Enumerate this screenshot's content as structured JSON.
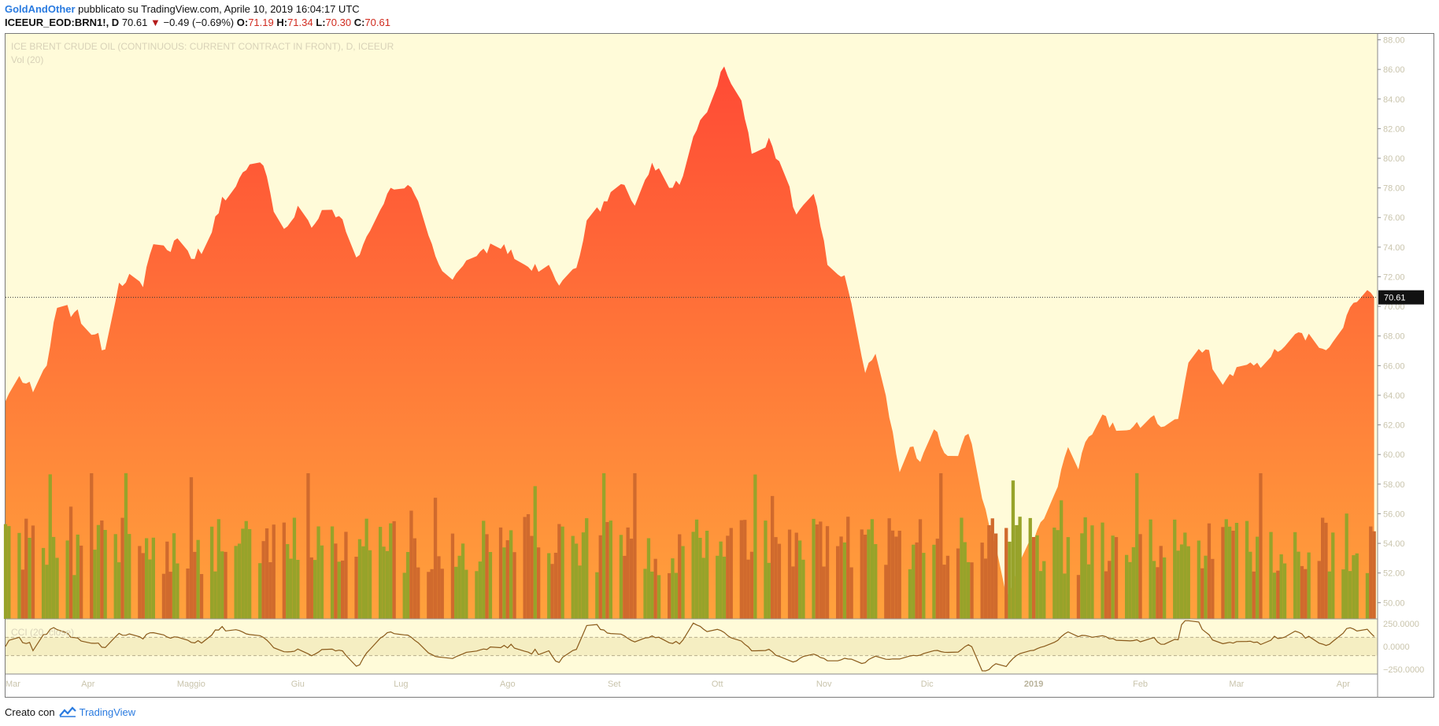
{
  "header": {
    "author": "GoldAndOther",
    "published_text": "pubblicato su TradingView.com, Aprile 10, 2019 16:04:17 UTC",
    "symbol": "ICEEUR_EOD:BRN1!, D",
    "last_price": "70.61",
    "change": "−0.49 (−0.69%)",
    "open_label": "O:",
    "open": "71.19",
    "high_label": "H:",
    "high": "71.34",
    "low_label": "L:",
    "low": "70.30",
    "close_label": "C:",
    "close": "70.61"
  },
  "footer": {
    "created_with": "Creato con",
    "brand": "TradingView"
  },
  "colors": {
    "background": "#fffbd9",
    "area_top": "#ff4a35",
    "area_bottom": "#ffa23c",
    "vol_up": "#97a32a",
    "vol_down": "#d06a2d",
    "cci_line": "#8a5a1a",
    "cci_band": "#f5eec2",
    "price_tag_bg": "#111111"
  },
  "chart_data": [
    {
      "type": "area",
      "title": "ICE BRENT CRUDE OIL (CONTINUOUS: CURRENT CONTRACT IN FRONT), D, ICEEUR",
      "ylim": [
        48.9,
        88.4
      ],
      "y_ticks": [
        "88.00",
        "86.00",
        "84.00",
        "82.00",
        "80.00",
        "78.00",
        "76.00",
        "74.00",
        "72.00",
        "70.00",
        "68.00",
        "66.00",
        "64.00",
        "62.00",
        "60.00",
        "58.00",
        "56.00",
        "54.00",
        "52.00",
        "50.00"
      ],
      "x_tick_labels": [
        "Mar",
        "Apr",
        "Maggio",
        "Giu",
        "Lug",
        "Ago",
        "Set",
        "Ott",
        "Nov",
        "Dic",
        "2019",
        "Feb",
        "Mar",
        "Apr"
      ],
      "current_price_label": "70.61",
      "current_price": 70.61,
      "anchors": [
        {
          "date": "2018-03-08",
          "close": 63.6
        },
        {
          "date": "2018-03-12",
          "close": 65.3
        },
        {
          "date": "2018-03-16",
          "close": 64.2
        },
        {
          "date": "2018-03-20",
          "close": 66.0
        },
        {
          "date": "2018-03-23",
          "close": 69.9
        },
        {
          "date": "2018-03-28",
          "close": 69.6
        },
        {
          "date": "2018-04-03",
          "close": 68.1
        },
        {
          "date": "2018-04-06",
          "close": 67.1
        },
        {
          "date": "2018-04-10",
          "close": 71.6
        },
        {
          "date": "2018-04-13",
          "close": 72.2
        },
        {
          "date": "2018-04-17",
          "close": 71.3
        },
        {
          "date": "2018-04-20",
          "close": 74.2
        },
        {
          "date": "2018-04-24",
          "close": 73.8
        },
        {
          "date": "2018-04-27",
          "close": 74.6
        },
        {
          "date": "2018-05-02",
          "close": 73.2
        },
        {
          "date": "2018-05-07",
          "close": 75.0
        },
        {
          "date": "2018-05-10",
          "close": 77.4
        },
        {
          "date": "2018-05-14",
          "close": 78.1
        },
        {
          "date": "2018-05-17",
          "close": 79.2
        },
        {
          "date": "2018-05-22",
          "close": 79.5
        },
        {
          "date": "2018-05-25",
          "close": 76.4
        },
        {
          "date": "2018-05-29",
          "close": 75.4
        },
        {
          "date": "2018-06-01",
          "close": 76.8
        },
        {
          "date": "2018-06-05",
          "close": 75.3
        },
        {
          "date": "2018-06-08",
          "close": 76.5
        },
        {
          "date": "2018-06-13",
          "close": 76.1
        },
        {
          "date": "2018-06-18",
          "close": 73.3
        },
        {
          "date": "2018-06-22",
          "close": 75.1
        },
        {
          "date": "2018-06-27",
          "close": 77.6
        },
        {
          "date": "2018-07-03",
          "close": 78.2
        },
        {
          "date": "2018-07-06",
          "close": 77.1
        },
        {
          "date": "2018-07-11",
          "close": 73.4
        },
        {
          "date": "2018-07-16",
          "close": 71.8
        },
        {
          "date": "2018-07-20",
          "close": 73.1
        },
        {
          "date": "2018-07-25",
          "close": 73.9
        },
        {
          "date": "2018-07-31",
          "close": 74.2
        },
        {
          "date": "2018-08-03",
          "close": 73.2
        },
        {
          "date": "2018-08-08",
          "close": 72.4
        },
        {
          "date": "2018-08-13",
          "close": 72.8
        },
        {
          "date": "2018-08-16",
          "close": 71.4
        },
        {
          "date": "2018-08-21",
          "close": 72.6
        },
        {
          "date": "2018-08-24",
          "close": 75.8
        },
        {
          "date": "2018-08-29",
          "close": 77.1
        },
        {
          "date": "2018-09-04",
          "close": 78.2
        },
        {
          "date": "2018-09-07",
          "close": 76.8
        },
        {
          "date": "2018-09-12",
          "close": 79.7
        },
        {
          "date": "2018-09-17",
          "close": 78.0
        },
        {
          "date": "2018-09-21",
          "close": 78.8
        },
        {
          "date": "2018-09-25",
          "close": 81.9
        },
        {
          "date": "2018-10-01",
          "close": 84.9
        },
        {
          "date": "2018-10-03",
          "close": 86.2
        },
        {
          "date": "2018-10-08",
          "close": 83.9
        },
        {
          "date": "2018-10-11",
          "close": 80.3
        },
        {
          "date": "2018-10-16",
          "close": 81.4
        },
        {
          "date": "2018-10-19",
          "close": 79.8
        },
        {
          "date": "2018-10-24",
          "close": 76.2
        },
        {
          "date": "2018-10-29",
          "close": 77.6
        },
        {
          "date": "2018-11-02",
          "close": 72.8
        },
        {
          "date": "2018-11-07",
          "close": 72.1
        },
        {
          "date": "2018-11-09",
          "close": 70.2
        },
        {
          "date": "2018-11-13",
          "close": 65.5
        },
        {
          "date": "2018-11-16",
          "close": 66.8
        },
        {
          "date": "2018-11-20",
          "close": 62.5
        },
        {
          "date": "2018-11-23",
          "close": 58.8
        },
        {
          "date": "2018-11-26",
          "close": 60.5
        },
        {
          "date": "2018-11-29",
          "close": 59.5
        },
        {
          "date": "2018-12-03",
          "close": 61.7
        },
        {
          "date": "2018-12-06",
          "close": 60.1
        },
        {
          "date": "2018-12-10",
          "close": 59.9
        },
        {
          "date": "2018-12-13",
          "close": 61.4
        },
        {
          "date": "2018-12-18",
          "close": 56.3
        },
        {
          "date": "2018-12-21",
          "close": 53.8
        },
        {
          "date": "2018-12-24",
          "close": 50.5
        },
        {
          "date": "2018-12-27",
          "close": 52.2
        },
        {
          "date": "2019-01-02",
          "close": 54.9
        },
        {
          "date": "2019-01-07",
          "close": 57.3
        },
        {
          "date": "2019-01-11",
          "close": 60.5
        },
        {
          "date": "2019-01-14",
          "close": 59.0
        },
        {
          "date": "2019-01-17",
          "close": 61.2
        },
        {
          "date": "2019-01-21",
          "close": 62.7
        },
        {
          "date": "2019-01-25",
          "close": 61.6
        },
        {
          "date": "2019-01-30",
          "close": 61.9
        },
        {
          "date": "2019-02-04",
          "close": 62.5
        },
        {
          "date": "2019-02-08",
          "close": 61.9
        },
        {
          "date": "2019-02-12",
          "close": 62.4
        },
        {
          "date": "2019-02-15",
          "close": 66.2
        },
        {
          "date": "2019-02-20",
          "close": 67.1
        },
        {
          "date": "2019-02-25",
          "close": 64.7
        },
        {
          "date": "2019-03-01",
          "close": 65.9
        },
        {
          "date": "2019-03-06",
          "close": 66.0
        },
        {
          "date": "2019-03-11",
          "close": 66.6
        },
        {
          "date": "2019-03-15",
          "close": 67.3
        },
        {
          "date": "2019-03-20",
          "close": 68.2
        },
        {
          "date": "2019-03-25",
          "close": 67.2
        },
        {
          "date": "2019-03-29",
          "close": 67.6
        },
        {
          "date": "2019-04-02",
          "close": 69.4
        },
        {
          "date": "2019-04-05",
          "close": 70.3
        },
        {
          "date": "2019-04-08",
          "close": 71.1
        },
        {
          "date": "2019-04-10",
          "close": 70.61
        }
      ]
    },
    {
      "type": "bar",
      "title": "Vol (20)",
      "series": [
        {
          "name": "Vol (20)"
        }
      ]
    },
    {
      "type": "line",
      "title": "CCI (20, close)",
      "ylim": [
        -300,
        300
      ],
      "y_ticks": [
        "250.0000",
        "0.0000",
        "−250.0000"
      ],
      "band": [
        -100,
        100
      ]
    }
  ]
}
